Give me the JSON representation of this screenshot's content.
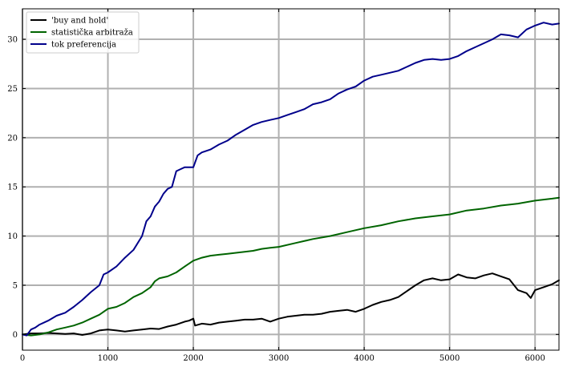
{
  "chart_data": {
    "type": "line",
    "title": "",
    "xlabel": "",
    "ylabel": "",
    "xlim": [
      0,
      6280
    ],
    "ylim": [
      -1.6,
      33.1
    ],
    "xticks": [
      0,
      1000,
      2000,
      3000,
      4000,
      5000,
      6000
    ],
    "yticks": [
      0,
      5,
      10,
      15,
      20,
      25,
      30
    ],
    "grid": true,
    "legend_position": "top-left",
    "series": [
      {
        "name": "'buy and hold'",
        "color": "#000000",
        "x": [
          0,
          100,
          200,
          300,
          400,
          500,
          600,
          700,
          800,
          900,
          1000,
          1100,
          1200,
          1300,
          1400,
          1500,
          1600,
          1700,
          1800,
          1900,
          1950,
          2000,
          2020,
          2100,
          2200,
          2300,
          2400,
          2500,
          2600,
          2700,
          2800,
          2900,
          3000,
          3100,
          3200,
          3300,
          3400,
          3500,
          3600,
          3700,
          3800,
          3900,
          4000,
          4100,
          4200,
          4300,
          4400,
          4500,
          4600,
          4700,
          4800,
          4900,
          5000,
          5100,
          5200,
          5300,
          5400,
          5500,
          5600,
          5700,
          5800,
          5900,
          5950,
          6000,
          6100,
          6200,
          6280
        ],
        "values": [
          0,
          0.1,
          0.1,
          0.15,
          0.1,
          0.05,
          0.1,
          -0.05,
          0.1,
          0.4,
          0.5,
          0.4,
          0.3,
          0.4,
          0.5,
          0.6,
          0.55,
          0.8,
          1.0,
          1.3,
          1.4,
          1.6,
          0.9,
          1.1,
          1.0,
          1.2,
          1.3,
          1.4,
          1.5,
          1.5,
          1.6,
          1.3,
          1.6,
          1.8,
          1.9,
          2.0,
          2.0,
          2.1,
          2.3,
          2.4,
          2.5,
          2.3,
          2.6,
          3.0,
          3.3,
          3.5,
          3.8,
          4.4,
          5.0,
          5.5,
          5.7,
          5.5,
          5.6,
          6.1,
          5.8,
          5.7,
          6.0,
          6.2,
          5.9,
          5.6,
          4.5,
          4.2,
          3.7,
          4.5,
          4.8,
          5.1,
          5.5
        ]
      },
      {
        "name": "statistička arbitraža",
        "color": "#006400",
        "x": [
          0,
          100,
          200,
          300,
          400,
          500,
          600,
          700,
          800,
          900,
          1000,
          1100,
          1200,
          1300,
          1400,
          1500,
          1550,
          1600,
          1700,
          1800,
          1900,
          2000,
          2100,
          2200,
          2300,
          2400,
          2500,
          2600,
          2700,
          2800,
          2900,
          3000,
          3200,
          3400,
          3600,
          3800,
          4000,
          4200,
          4400,
          4600,
          4800,
          5000,
          5200,
          5400,
          5600,
          5800,
          6000,
          6200,
          6280
        ],
        "values": [
          0,
          -0.1,
          0.0,
          0.2,
          0.5,
          0.7,
          0.9,
          1.2,
          1.6,
          2.0,
          2.6,
          2.8,
          3.2,
          3.8,
          4.2,
          4.8,
          5.4,
          5.7,
          5.9,
          6.3,
          6.9,
          7.5,
          7.8,
          8.0,
          8.1,
          8.2,
          8.3,
          8.4,
          8.5,
          8.7,
          8.8,
          8.9,
          9.3,
          9.7,
          10.0,
          10.4,
          10.8,
          11.1,
          11.5,
          11.8,
          12.0,
          12.2,
          12.6,
          12.8,
          13.1,
          13.3,
          13.6,
          13.8,
          13.9
        ]
      },
      {
        "name": "tok preferencija",
        "color": "#00008B",
        "x": [
          0,
          50,
          100,
          150,
          200,
          300,
          400,
          500,
          600,
          700,
          800,
          900,
          950,
          1000,
          1100,
          1200,
          1300,
          1400,
          1450,
          1500,
          1550,
          1600,
          1650,
          1700,
          1750,
          1800,
          1850,
          1900,
          2000,
          2050,
          2100,
          2200,
          2300,
          2400,
          2500,
          2600,
          2700,
          2800,
          2900,
          3000,
          3100,
          3200,
          3300,
          3400,
          3500,
          3600,
          3700,
          3800,
          3900,
          4000,
          4100,
          4200,
          4300,
          4400,
          4500,
          4600,
          4700,
          4800,
          4900,
          5000,
          5100,
          5200,
          5300,
          5400,
          5500,
          5600,
          5700,
          5800,
          5900,
          6000,
          6100,
          6200,
          6280
        ],
        "values": [
          0,
          -0.1,
          0.5,
          0.7,
          1.0,
          1.4,
          1.9,
          2.2,
          2.8,
          3.5,
          4.3,
          5.0,
          6.1,
          6.3,
          6.9,
          7.8,
          8.6,
          10.0,
          11.5,
          12.0,
          13.0,
          13.5,
          14.3,
          14.8,
          15.0,
          16.6,
          16.8,
          17.0,
          17.0,
          18.2,
          18.5,
          18.8,
          19.3,
          19.7,
          20.3,
          20.8,
          21.3,
          21.6,
          21.8,
          22.0,
          22.3,
          22.6,
          22.9,
          23.4,
          23.6,
          23.9,
          24.5,
          24.9,
          25.2,
          25.8,
          26.2,
          26.4,
          26.6,
          26.8,
          27.2,
          27.6,
          27.9,
          28.0,
          27.9,
          28.0,
          28.3,
          28.8,
          29.2,
          29.6,
          30.0,
          30.5,
          30.4,
          30.2,
          31.0,
          31.4,
          31.7,
          31.5,
          31.6
        ]
      }
    ]
  }
}
